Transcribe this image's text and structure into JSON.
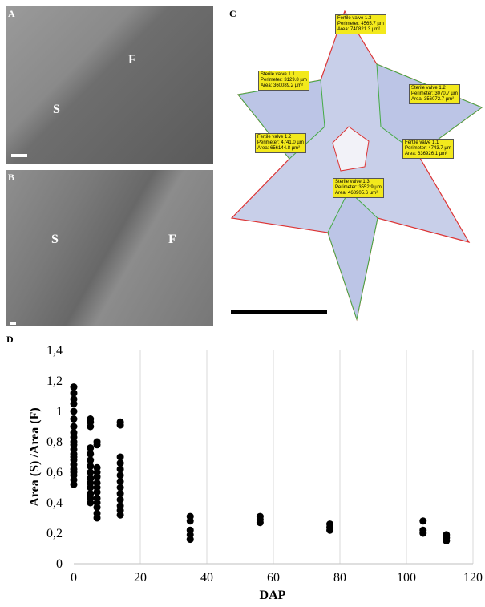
{
  "panels": {
    "a": {
      "label": "A",
      "regions": [
        "S",
        "F"
      ]
    },
    "b": {
      "label": "B",
      "regions": [
        "S",
        "F"
      ]
    },
    "c": {
      "label": "C",
      "annotations": [
        {
          "title": "Fertile valve 1.3",
          "perimeter": "Perimeter: 4565.7 µm",
          "area": "Area: 740821.3 µm²"
        },
        {
          "title": "Sterile valve 1.1",
          "perimeter": "Perimeter: 3129.8 µm",
          "area": "Area: 360089.2 µm²"
        },
        {
          "title": "Sterile valve 1.2",
          "perimeter": "Perimeter: 3070.7 µm",
          "area": "Area: 356072.7 µm²"
        },
        {
          "title": "Fertile valve 1.2",
          "perimeter": "Perimeter: 4741.0 µm",
          "area": "Area: 656144.8 µm²"
        },
        {
          "title": "Fertile valve 1.1",
          "perimeter": "Perimeter: 4743.7 µm",
          "area": "Area: 636926.1 µm²"
        },
        {
          "title": "Sterile valve 1.3",
          "perimeter": "Perimeter: 3552.9 µm",
          "area": "Area: 468905.6 µm²"
        }
      ]
    }
  },
  "chart_data": {
    "type": "scatter",
    "label": "D",
    "x_label": "DAP",
    "y_label": "Area (S) /Area (F)",
    "color": "#000000",
    "grid": "vertical",
    "x": [
      0,
      0,
      0,
      0,
      0,
      0,
      0,
      0,
      0,
      0,
      0,
      0,
      0,
      0,
      0,
      0,
      0,
      0,
      0,
      0,
      0,
      5,
      5,
      5,
      5,
      5,
      5,
      5,
      5,
      5,
      5,
      5,
      5,
      5,
      5,
      7,
      7,
      7,
      7,
      7,
      7,
      7,
      7,
      7,
      7,
      7,
      7,
      7,
      14,
      14,
      14,
      14,
      14,
      14,
      14,
      14,
      14,
      14,
      14,
      14,
      14,
      35,
      35,
      35,
      35,
      35,
      56,
      56,
      56,
      77,
      77,
      77,
      105,
      105,
      105,
      112,
      112,
      112
    ],
    "values": [
      0.52,
      0.55,
      0.58,
      0.6,
      0.62,
      0.65,
      0.68,
      0.7,
      0.72,
      0.75,
      0.78,
      0.8,
      0.83,
      0.86,
      0.9,
      0.95,
      1.0,
      1.05,
      1.08,
      1.12,
      1.16,
      0.4,
      0.43,
      0.46,
      0.5,
      0.53,
      0.56,
      0.6,
      0.64,
      0.68,
      0.72,
      0.76,
      0.9,
      0.93,
      0.95,
      0.3,
      0.33,
      0.37,
      0.4,
      0.43,
      0.47,
      0.5,
      0.53,
      0.57,
      0.6,
      0.63,
      0.78,
      0.8,
      0.32,
      0.35,
      0.38,
      0.42,
      0.46,
      0.5,
      0.54,
      0.58,
      0.62,
      0.66,
      0.7,
      0.91,
      0.93,
      0.16,
      0.19,
      0.22,
      0.28,
      0.31,
      0.27,
      0.29,
      0.31,
      0.22,
      0.24,
      0.26,
      0.2,
      0.22,
      0.28,
      0.15,
      0.17,
      0.19
    ],
    "xlim": [
      0,
      120
    ],
    "xticks": [
      0,
      20,
      40,
      60,
      80,
      100,
      120
    ],
    "ylim": [
      0,
      1.4
    ],
    "yticks": [
      0,
      {
        "value": 0.2,
        "label": "0,2"
      },
      {
        "value": 0.4,
        "label": "0,4"
      },
      {
        "value": 0.6,
        "label": "0,6"
      },
      {
        "value": 0.8,
        "label": "0,8"
      },
      1,
      {
        "value": 1.2,
        "label": "1,2"
      },
      {
        "value": 1.4,
        "label": "1,4"
      }
    ]
  }
}
